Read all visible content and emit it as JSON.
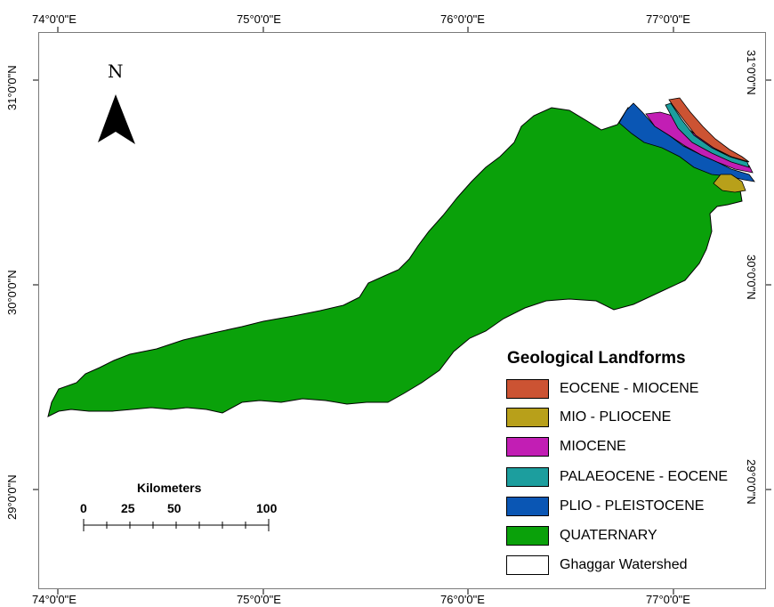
{
  "coordinates": {
    "top": [
      "74°0'0\"E",
      "75°0'0\"E",
      "76°0'0\"E",
      "77°0'0\"E"
    ],
    "bottom": [
      "74°0'0\"E",
      "75°0'0\"E",
      "76°0'0\"E",
      "77°0'0\"E"
    ],
    "left": [
      "31°0'0\"N",
      "30°0'0\"N",
      "29°0'0\"N"
    ],
    "right": [
      "31°0'0\"N",
      "30°0'0\"N",
      "29°0'0\"N"
    ]
  },
  "north_arrow": {
    "letter": "N"
  },
  "legend": {
    "title": "Geological Landforms",
    "items": [
      {
        "label": "EOCENE - MIOCENE",
        "color": "#cc5333"
      },
      {
        "label": "MIO - PLIOCENE",
        "color": "#b8a01a"
      },
      {
        "label": "MIOCENE",
        "color": "#c21eb4"
      },
      {
        "label": "PALAEOCENE - EOCENE",
        "color": "#1c9e9e"
      },
      {
        "label": "PLIO - PLEISTOCENE",
        "color": "#0a56b4"
      },
      {
        "label": "QUATERNARY",
        "color": "#0aa10a"
      },
      {
        "label": "Ghaggar Watershed",
        "color": "#ffffff"
      }
    ]
  },
  "scale_bar": {
    "title": "Kilometers",
    "labels": [
      "0",
      "25",
      "50",
      "100"
    ]
  }
}
